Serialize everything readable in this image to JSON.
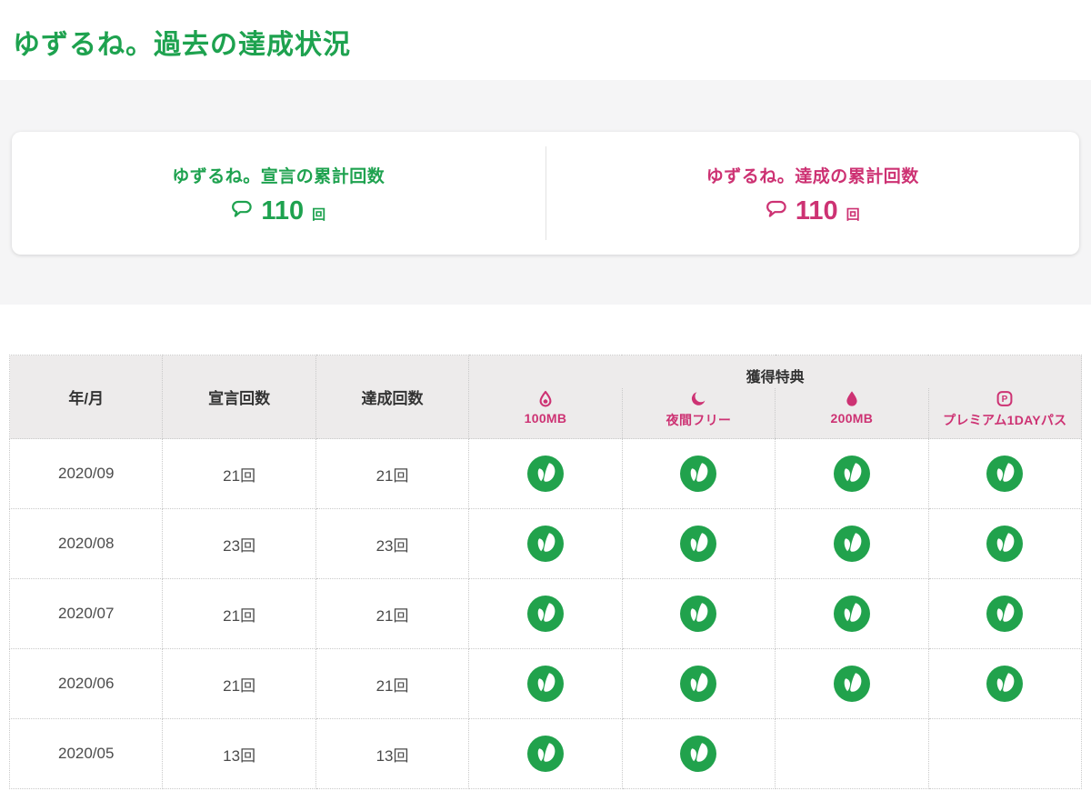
{
  "page": {
    "title": "ゆずるね。過去の達成状況"
  },
  "summary": {
    "declare": {
      "label": "ゆずるね。宣言の累計回数",
      "value": "110",
      "unit": "回"
    },
    "achieve": {
      "label": "ゆずるね。達成の累計回数",
      "value": "110",
      "unit": "回"
    }
  },
  "table": {
    "headers": {
      "month": "年/月",
      "declared": "宣言回数",
      "achieved": "達成回数",
      "rewards": "獲得特典"
    },
    "reward_columns": [
      {
        "icon": "droplet-outline-icon",
        "label": "100MB"
      },
      {
        "icon": "moon-icon",
        "label": "夜間フリー"
      },
      {
        "icon": "droplet-filled-icon",
        "label": "200MB"
      },
      {
        "icon": "premium-pass-icon",
        "label": "プレミアム1DAYパス"
      }
    ],
    "rows": [
      {
        "month": "2020/09",
        "declared": "21回",
        "achieved": "21回",
        "rewards": [
          true,
          true,
          true,
          true
        ]
      },
      {
        "month": "2020/08",
        "declared": "23回",
        "achieved": "23回",
        "rewards": [
          true,
          true,
          true,
          true
        ]
      },
      {
        "month": "2020/07",
        "declared": "21回",
        "achieved": "21回",
        "rewards": [
          true,
          true,
          true,
          true
        ]
      },
      {
        "month": "2020/06",
        "declared": "21回",
        "achieved": "21回",
        "rewards": [
          true,
          true,
          true,
          true
        ]
      },
      {
        "month": "2020/05",
        "declared": "13回",
        "achieved": "13回",
        "rewards": [
          true,
          true,
          false,
          false
        ]
      }
    ]
  },
  "colors": {
    "green": "#1ea24f",
    "pink": "#cd3273",
    "leaf_green": "#21a24c",
    "header_bg": "#edebeb",
    "band_bg": "#f5f5f6",
    "border_dotted": "#c9c9c9"
  },
  "icons": {
    "achieved_mark": "leaf-badge-icon"
  }
}
